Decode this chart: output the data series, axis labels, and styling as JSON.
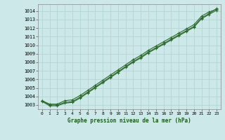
{
  "title": "Graphe pression niveau de la mer (hPa)",
  "background_color": "#cce8e8",
  "grid_color": "#b8d8d8",
  "line_color": "#2d6a2d",
  "marker_color": "#2d6a2d",
  "xlim": [
    -0.5,
    23.5
  ],
  "ylim": [
    1002.5,
    1014.8
  ],
  "yticks": [
    1003,
    1004,
    1005,
    1006,
    1007,
    1008,
    1009,
    1010,
    1011,
    1012,
    1013,
    1014
  ],
  "xticks": [
    0,
    1,
    2,
    3,
    4,
    5,
    6,
    7,
    8,
    9,
    10,
    11,
    12,
    13,
    14,
    15,
    16,
    17,
    18,
    19,
    20,
    21,
    22,
    23
  ],
  "series": [
    [
      1003.5,
      1003.0,
      1003.0,
      1003.3,
      1003.4,
      1003.9,
      1004.5,
      1005.1,
      1005.7,
      1006.3,
      1006.9,
      1007.5,
      1008.1,
      1008.6,
      1009.2,
      1009.7,
      1010.2,
      1010.7,
      1011.2,
      1011.7,
      1012.2,
      1013.2,
      1013.7,
      1014.3
    ],
    [
      1003.5,
      1003.1,
      1003.1,
      1003.5,
      1003.6,
      1004.1,
      1004.7,
      1005.3,
      1005.9,
      1006.5,
      1007.1,
      1007.7,
      1008.3,
      1008.8,
      1009.4,
      1009.9,
      1010.4,
      1010.9,
      1011.4,
      1011.9,
      1012.4,
      1013.4,
      1013.9,
      1014.2
    ],
    [
      1003.4,
      1002.9,
      1002.9,
      1003.2,
      1003.3,
      1003.8,
      1004.4,
      1005.0,
      1005.6,
      1006.2,
      1006.8,
      1007.4,
      1008.0,
      1008.5,
      1009.1,
      1009.6,
      1010.1,
      1010.6,
      1011.1,
      1011.6,
      1012.1,
      1013.1,
      1013.6,
      1014.1
    ]
  ]
}
